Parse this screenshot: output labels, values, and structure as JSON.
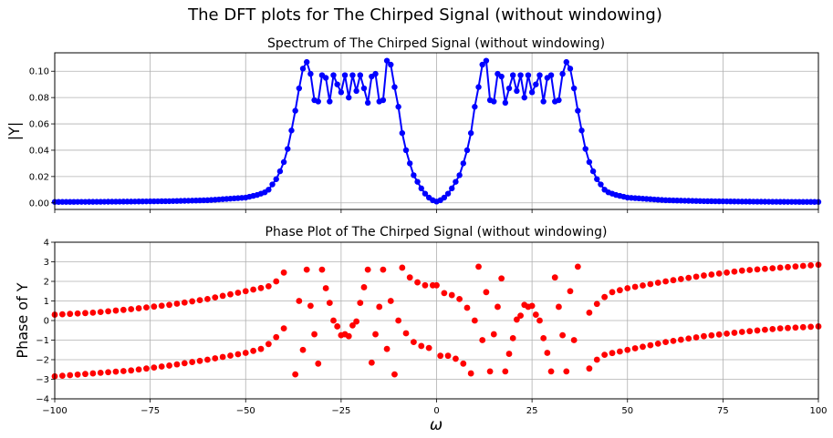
{
  "figure": {
    "suptitle": "The DFT plots for The Chirped Signal (without windowing)"
  },
  "chart_data": [
    {
      "type": "line",
      "title": "Spectrum of The Chirped Signal (without windowing)",
      "xlabel": "",
      "ylabel": "|Y|",
      "xlim": [
        -100,
        100
      ],
      "ylim": [
        -0.005,
        0.114
      ],
      "xticks": [
        -100,
        -75,
        -50,
        -25,
        0,
        25,
        50,
        75,
        100
      ],
      "yticks": [
        0.0,
        0.02,
        0.04,
        0.06,
        0.08,
        0.1
      ],
      "ytick_labels": [
        "0.00",
        "0.02",
        "0.04",
        "0.06",
        "0.08",
        "0.10"
      ],
      "show_xtick_labels": false,
      "grid": true,
      "color": "#0000ff",
      "marker": "circle",
      "x_step": 1,
      "x": {
        "start": -100,
        "stop": 100,
        "step": 1
      },
      "y_keypoints": [
        [
          -100,
          0.0007
        ],
        [
          -90,
          0.0008
        ],
        [
          -80,
          0.001
        ],
        [
          -70,
          0.0013
        ],
        [
          -60,
          0.002
        ],
        [
          -55,
          0.003
        ],
        [
          -50,
          0.004
        ],
        [
          -47,
          0.006
        ],
        [
          -45,
          0.008
        ],
        [
          -44,
          0.01
        ],
        [
          -43,
          0.014
        ],
        [
          -42,
          0.018
        ],
        [
          -41,
          0.024
        ],
        [
          -40,
          0.031
        ],
        [
          -39,
          0.041
        ],
        [
          -38,
          0.055
        ],
        [
          -37,
          0.07
        ],
        [
          -36,
          0.087
        ],
        [
          -35,
          0.102
        ],
        [
          -34,
          0.107
        ],
        [
          -33,
          0.098
        ],
        [
          -32,
          0.078
        ],
        [
          -31,
          0.077
        ],
        [
          -30,
          0.097
        ],
        [
          -29,
          0.095
        ],
        [
          -28,
          0.077
        ],
        [
          -27,
          0.097
        ],
        [
          -26,
          0.09
        ],
        [
          -25,
          0.084
        ],
        [
          -24,
          0.097
        ],
        [
          -23,
          0.08
        ],
        [
          -22,
          0.097
        ],
        [
          -21,
          0.085
        ],
        [
          -20,
          0.097
        ],
        [
          -19,
          0.087
        ],
        [
          -18,
          0.076
        ],
        [
          -17,
          0.096
        ],
        [
          -16,
          0.098
        ],
        [
          -15,
          0.077
        ],
        [
          -14,
          0.078
        ],
        [
          -13,
          0.108
        ],
        [
          -12,
          0.105
        ],
        [
          -11,
          0.088
        ],
        [
          -10,
          0.073
        ],
        [
          -9,
          0.053
        ],
        [
          -8,
          0.04
        ],
        [
          -7,
          0.03
        ],
        [
          -6,
          0.021
        ],
        [
          -5,
          0.016
        ],
        [
          -4,
          0.011
        ],
        [
          -3,
          0.007
        ],
        [
          -2,
          0.004
        ],
        [
          -1,
          0.002
        ],
        [
          0,
          0.001
        ]
      ],
      "symmetric": true
    },
    {
      "type": "scatter",
      "title": "Phase Plot of The Chirped Signal (without windowing)",
      "xlabel": "ω",
      "ylabel": "Phase of Y",
      "xlim": [
        -100,
        100
      ],
      "ylim": [
        -4,
        4
      ],
      "xticks": [
        -100,
        -75,
        -50,
        -25,
        0,
        25,
        50,
        75,
        100
      ],
      "xtick_labels": [
        "−100",
        "−75",
        "−50",
        "−25",
        "0",
        "25",
        "50",
        "75",
        "100"
      ],
      "yticks": [
        -4,
        -3,
        -2,
        -1,
        0,
        1,
        2,
        3,
        4
      ],
      "ytick_labels": [
        "−4",
        "−3",
        "−2",
        "−1",
        "0",
        "1",
        "2",
        "3",
        "4"
      ],
      "grid": true,
      "color": "#ff0000",
      "marker": "circle",
      "x_step": 2,
      "series": [
        {
          "upper_branch": [
            [
              -100,
              0.3
            ],
            [
              -90,
              0.4
            ],
            [
              -80,
              0.58
            ],
            [
              -70,
              0.8
            ],
            [
              -60,
              1.1
            ],
            [
              -50,
              1.5
            ],
            [
              -45,
              1.7
            ],
            [
              -43,
              1.8
            ],
            [
              -41,
              2.2
            ],
            [
              -39,
              2.7
            ]
          ],
          "lower_branch": [
            [
              -100,
              -2.85
            ],
            [
              -90,
              -2.7
            ],
            [
              -80,
              -2.55
            ],
            [
              -70,
              -2.3
            ],
            [
              -60,
              -2.0
            ],
            [
              -50,
              -1.65
            ],
            [
              -45,
              -1.4
            ],
            [
              -43,
              -1.0
            ],
            [
              -41,
              -0.7
            ],
            [
              -39,
              -0.1
            ]
          ],
          "center_points": [
            [
              -37,
              -2.75
            ],
            [
              -36,
              1.0
            ],
            [
              -35,
              -1.5
            ],
            [
              -34,
              2.6
            ],
            [
              -33,
              0.75
            ],
            [
              -32,
              -0.7
            ],
            [
              -31,
              -2.2
            ],
            [
              -30,
              2.6
            ],
            [
              -29,
              1.65
            ],
            [
              -28,
              0.9
            ],
            [
              -27,
              0.0
            ],
            [
              -26,
              -0.3
            ],
            [
              -25,
              -0.75
            ],
            [
              -24,
              -0.7
            ],
            [
              -23,
              -0.8
            ],
            [
              -22,
              -0.25
            ],
            [
              -21,
              -0.05
            ],
            [
              -20,
              0.9
            ],
            [
              -19,
              1.7
            ],
            [
              -18,
              2.6
            ],
            [
              -17,
              -2.15
            ],
            [
              -16,
              -0.7
            ],
            [
              -15,
              0.7
            ],
            [
              -14,
              2.6
            ],
            [
              -13,
              -1.45
            ],
            [
              -12,
              1.0
            ],
            [
              -11,
              -2.75
            ],
            [
              -10,
              0.0
            ],
            [
              -9,
              2.7
            ],
            [
              -8,
              -0.65
            ],
            [
              -7,
              2.2
            ],
            [
              -6,
              -1.1
            ],
            [
              -5,
              1.95
            ],
            [
              -4,
              -1.3
            ],
            [
              -3,
              1.8
            ],
            [
              -2,
              -1.4
            ],
            [
              -1,
              1.8
            ],
            [
              0,
              1.8
            ]
          ]
        }
      ]
    }
  ]
}
